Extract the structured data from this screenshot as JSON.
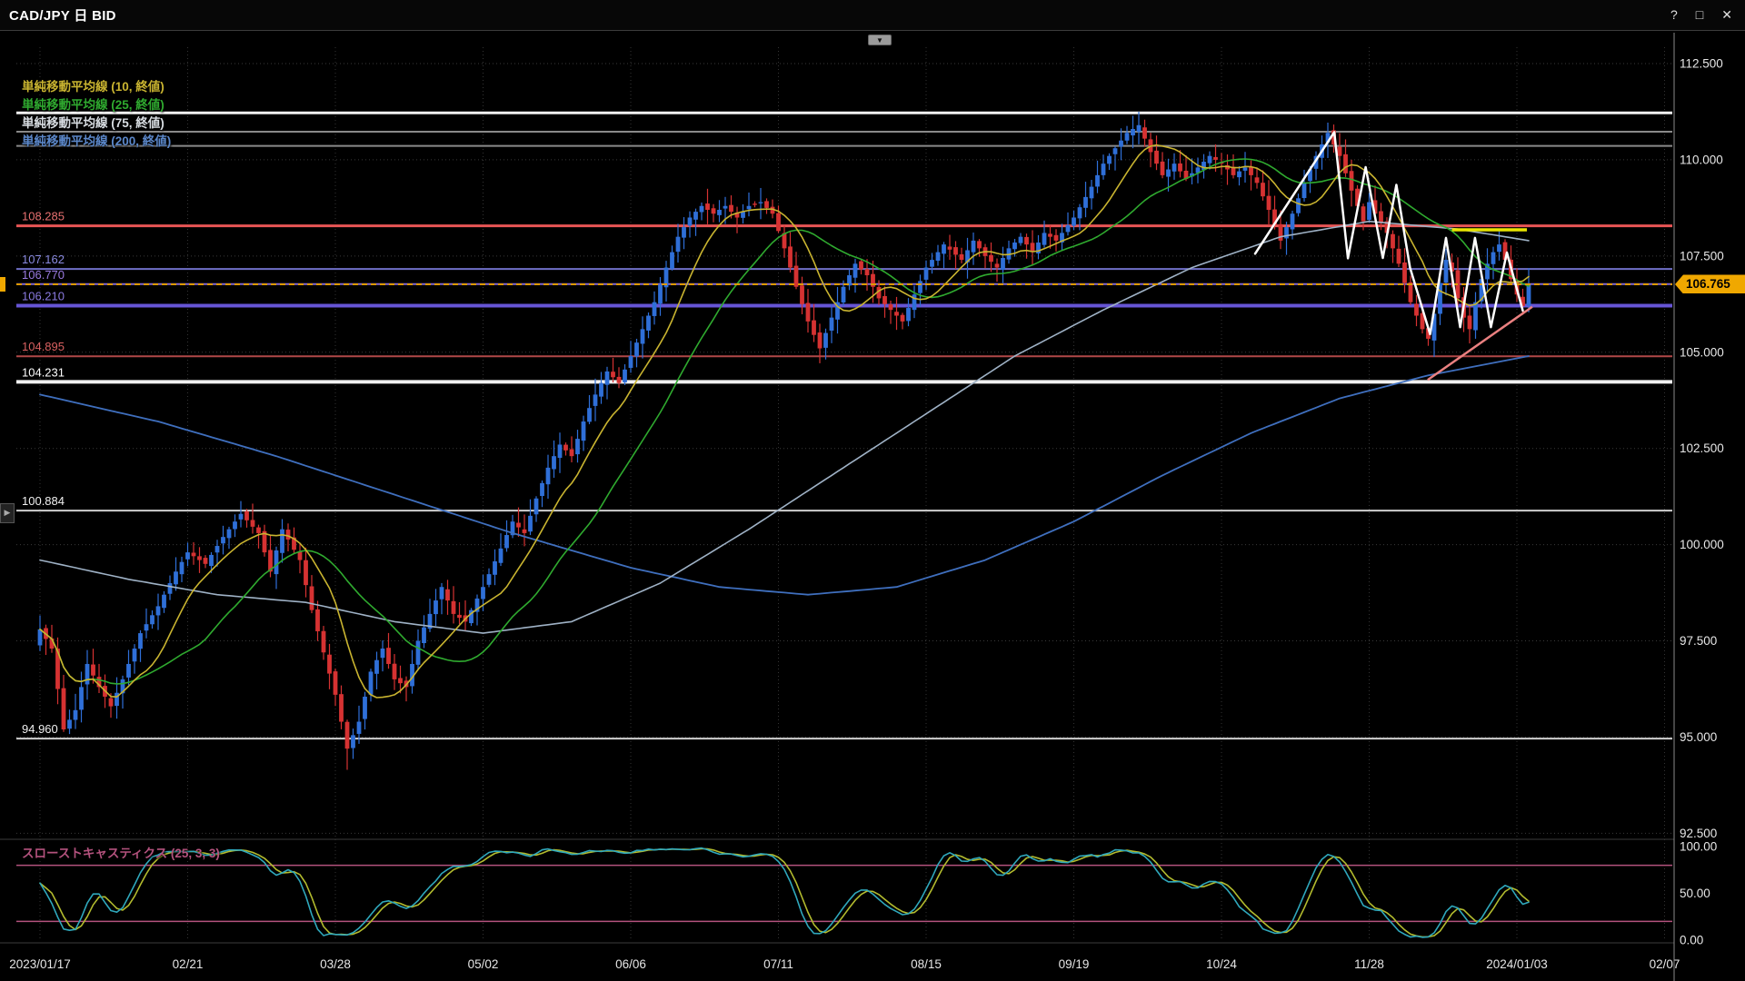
{
  "window": {
    "title": "CAD/JPY 日 BID",
    "controls": {
      "help": "?",
      "maximize": "□",
      "close": "✕"
    },
    "top_dropdown": "▼",
    "left_scroll_arrow": "▶"
  },
  "legend": {
    "items": [
      {
        "label": "単純移動平均線 (10, 終値)",
        "color": "#c9b430"
      },
      {
        "label": "単純移動平均線 (25, 終値)",
        "color": "#2faa2f"
      },
      {
        "label": "単純移動平均線 (75, 終値)",
        "color": "#d8dde2"
      },
      {
        "label": "単純移動平均線 (200, 終値)",
        "color": "#5b87c9"
      }
    ]
  },
  "stoch": {
    "label": "スローストキャスティクス (25, 3, 3)",
    "axis": [
      "100.00",
      "50.00",
      "0.00"
    ],
    "axis_values": [
      100,
      50,
      0
    ],
    "overbought": 80,
    "oversold": 20,
    "colors": {
      "k": "#2fa8bc",
      "d": "#b2bb2e",
      "bands": "#b3527d"
    }
  },
  "price_axis": {
    "ticks": [
      "112.500",
      "110.000",
      "107.500",
      "105.000",
      "102.500",
      "100.000",
      "97.500",
      "95.000",
      "92.500"
    ],
    "tick_values": [
      112.5,
      110.0,
      107.5,
      105.0,
      102.5,
      100.0,
      97.5,
      95.0,
      92.5
    ],
    "current_value": 106.765,
    "current_label": "106.765"
  },
  "time_axis": {
    "labels": [
      "2023/01/17",
      "02/21",
      "03/28",
      "05/02",
      "06/06",
      "07/11",
      "08/15",
      "09/19",
      "10/24",
      "11/28",
      "2024/01/03",
      "02/07"
    ],
    "bars_per_tick": 25
  },
  "hlines": [
    {
      "price": 111.22,
      "label": "",
      "color": "#f2f2f2",
      "width": 3
    },
    {
      "price": 110.73,
      "label": "",
      "color": "#8a8a8a",
      "width": 2
    },
    {
      "price": 110.36,
      "label": "",
      "color": "#8a8a8a",
      "width": 2
    },
    {
      "price": 108.285,
      "label": "108.285",
      "color": "#e85555",
      "width": 3,
      "label_color": "#e87070"
    },
    {
      "price": 107.162,
      "label": "107.162",
      "color": "#7070c8",
      "width": 2,
      "label_color": "#8a8ae0"
    },
    {
      "price": 106.77,
      "label": "106.770",
      "color": "#8468d0",
      "width": 2,
      "label_color": "#9a7ae0"
    },
    {
      "price": 106.21,
      "label": "106.210",
      "color": "#6655d5",
      "width": 4,
      "label_color": "#8a7ae0"
    },
    {
      "price": 104.895,
      "label": "104.895",
      "color": "#b04848",
      "width": 2,
      "label_color": "#d86060"
    },
    {
      "price": 104.231,
      "label": "104.231",
      "color": "#f0f0f0",
      "width": 4,
      "label_color": "#ffffff"
    },
    {
      "price": 100.884,
      "label": "100.884",
      "color": "#cfcfcf",
      "width": 2,
      "label_color": "#f0f0f0"
    },
    {
      "price": 94.96,
      "label": "94.960",
      "color": "#cfcfcf",
      "width": 2,
      "label_color": "#f0f0f0"
    }
  ],
  "chart_data": {
    "type": "candlestick",
    "symbol": "CAD/JPY",
    "timeframe": "daily (日)",
    "price_type": "BID",
    "current_bid": 106.765,
    "x_range": [
      "2023/01/17",
      "2024/02/07"
    ],
    "y_range": [
      92.5,
      112.5
    ],
    "bars_drawn": 253,
    "close_anchors": [
      [
        0,
        97.8
      ],
      [
        2,
        97.3
      ],
      [
        4,
        95.2
      ],
      [
        6,
        95.7
      ],
      [
        8,
        96.9
      ],
      [
        10,
        96.3
      ],
      [
        12,
        95.8
      ],
      [
        14,
        96.5
      ],
      [
        17,
        97.7
      ],
      [
        20,
        98.4
      ],
      [
        23,
        99.3
      ],
      [
        25,
        99.8
      ],
      [
        28,
        99.5
      ],
      [
        31,
        100.2
      ],
      [
        34,
        100.8
      ],
      [
        37,
        100.3
      ],
      [
        39,
        99.3
      ],
      [
        41,
        100.4
      ],
      [
        44,
        99.6
      ],
      [
        46,
        98.3
      ],
      [
        48,
        97.2
      ],
      [
        50,
        96.1
      ],
      [
        52,
        94.7
      ],
      [
        54,
        95.4
      ],
      [
        56,
        96.7
      ],
      [
        58,
        97.3
      ],
      [
        60,
        96.5
      ],
      [
        62,
        96.3
      ],
      [
        64,
        97.5
      ],
      [
        66,
        98.2
      ],
      [
        68,
        98.9
      ],
      [
        70,
        98.2
      ],
      [
        72,
        98.0
      ],
      [
        75,
        98.9
      ],
      [
        78,
        99.9
      ],
      [
        80,
        100.6
      ],
      [
        82,
        100.3
      ],
      [
        84,
        101.2
      ],
      [
        86,
        102.0
      ],
      [
        88,
        102.6
      ],
      [
        90,
        102.3
      ],
      [
        92,
        103.2
      ],
      [
        94,
        103.9
      ],
      [
        96,
        104.5
      ],
      [
        98,
        104.2
      ],
      [
        100,
        104.9
      ],
      [
        102,
        105.6
      ],
      [
        104,
        106.3
      ],
      [
        106,
        107.2
      ],
      [
        108,
        108.0
      ],
      [
        110,
        108.5
      ],
      [
        112,
        108.8
      ],
      [
        114,
        108.6
      ],
      [
        116,
        108.8
      ],
      [
        118,
        108.5
      ],
      [
        120,
        108.8
      ],
      [
        122,
        108.9
      ],
      [
        124,
        108.6
      ],
      [
        126,
        107.7
      ],
      [
        128,
        106.7
      ],
      [
        130,
        105.8
      ],
      [
        132,
        105.1
      ],
      [
        134,
        105.9
      ],
      [
        136,
        106.7
      ],
      [
        138,
        107.3
      ],
      [
        140,
        107.0
      ],
      [
        142,
        106.4
      ],
      [
        144,
        106.1
      ],
      [
        146,
        105.8
      ],
      [
        148,
        106.5
      ],
      [
        150,
        107.2
      ],
      [
        153,
        107.8
      ],
      [
        156,
        107.4
      ],
      [
        158,
        107.9
      ],
      [
        160,
        107.5
      ],
      [
        162,
        107.2
      ],
      [
        164,
        107.7
      ],
      [
        166,
        108.0
      ],
      [
        168,
        107.6
      ],
      [
        170,
        108.1
      ],
      [
        172,
        107.9
      ],
      [
        175,
        108.5
      ],
      [
        178,
        109.3
      ],
      [
        180,
        109.9
      ],
      [
        182,
        110.3
      ],
      [
        184,
        110.7
      ],
      [
        186,
        110.9
      ],
      [
        188,
        110.2
      ],
      [
        190,
        109.6
      ],
      [
        192,
        109.9
      ],
      [
        194,
        109.5
      ],
      [
        196,
        109.8
      ],
      [
        198,
        110.1
      ],
      [
        200,
        109.9
      ],
      [
        202,
        109.6
      ],
      [
        204,
        109.8
      ],
      [
        206,
        109.4
      ],
      [
        208,
        108.7
      ],
      [
        210,
        107.9
      ],
      [
        212,
        108.6
      ],
      [
        214,
        109.4
      ],
      [
        216,
        110.1
      ],
      [
        218,
        110.7
      ],
      [
        220,
        110.1
      ],
      [
        222,
        109.2
      ],
      [
        224,
        108.4
      ],
      [
        225,
        108.9
      ],
      [
        226,
        108.6
      ],
      [
        228,
        108.1
      ],
      [
        230,
        107.3
      ],
      [
        232,
        106.3
      ],
      [
        234,
        105.6
      ],
      [
        235,
        105.35
      ],
      [
        236,
        106.0
      ],
      [
        237,
        106.8
      ],
      [
        238,
        107.4
      ],
      [
        239,
        107.1
      ],
      [
        240,
        106.4
      ],
      [
        241,
        105.9
      ],
      [
        242,
        105.6
      ],
      [
        243,
        106.3
      ],
      [
        244,
        106.9
      ],
      [
        245,
        107.3
      ],
      [
        246,
        107.6
      ],
      [
        247,
        107.8
      ],
      [
        248,
        107.4
      ],
      [
        249,
        106.9
      ],
      [
        250,
        106.5
      ],
      [
        251,
        106.2
      ],
      [
        252,
        106.765
      ]
    ],
    "ma75_anchors": [
      [
        0,
        99.6
      ],
      [
        15,
        99.1
      ],
      [
        30,
        98.7
      ],
      [
        45,
        98.5
      ],
      [
        60,
        98.0
      ],
      [
        75,
        97.7
      ],
      [
        90,
        98.0
      ],
      [
        105,
        99.0
      ],
      [
        120,
        100.4
      ],
      [
        135,
        101.9
      ],
      [
        150,
        103.4
      ],
      [
        165,
        104.9
      ],
      [
        180,
        106.1
      ],
      [
        195,
        107.2
      ],
      [
        210,
        108.0
      ],
      [
        225,
        108.4
      ],
      [
        240,
        108.2
      ],
      [
        252,
        107.9
      ]
    ],
    "ma200_anchors": [
      [
        0,
        103.9
      ],
      [
        20,
        103.2
      ],
      [
        40,
        102.3
      ],
      [
        60,
        101.3
      ],
      [
        80,
        100.3
      ],
      [
        100,
        99.4
      ],
      [
        115,
        98.9
      ],
      [
        130,
        98.7
      ],
      [
        145,
        98.9
      ],
      [
        160,
        99.6
      ],
      [
        175,
        100.6
      ],
      [
        190,
        101.8
      ],
      [
        205,
        102.9
      ],
      [
        220,
        103.8
      ],
      [
        235,
        104.4
      ],
      [
        252,
        104.9
      ]
    ],
    "indicators": [
      "SMA(10, close)",
      "SMA(25, close)",
      "SMA(75, close)",
      "SMA(200, close)",
      "Slow Stochastics (25,3,3)"
    ]
  },
  "annotations": {
    "zigzag": {
      "color": "#ffffff",
      "width": 2.5,
      "points": [
        [
          205.7,
          107.56
        ],
        [
          219.1,
          110.72
        ],
        [
          221.4,
          107.44
        ],
        [
          224.4,
          109.81
        ],
        [
          227.3,
          107.45
        ],
        [
          229.6,
          109.35
        ],
        [
          231.9,
          107.2
        ],
        [
          235.3,
          105.47
        ],
        [
          238.0,
          107.97
        ],
        [
          240.4,
          105.65
        ],
        [
          242.9,
          107.97
        ],
        [
          245.6,
          105.65
        ],
        [
          248.3,
          107.59
        ],
        [
          251.0,
          106.08
        ]
      ]
    },
    "yellow_line": {
      "color": "#e8e400",
      "width": 3.5,
      "from": [
        239.0,
        108.18
      ],
      "to": [
        251.7,
        108.18
      ]
    },
    "pink_line": {
      "color": "#ea8080",
      "width": 2.5,
      "from": [
        234.9,
        104.28
      ],
      "to": [
        252.6,
        106.18
      ]
    }
  },
  "colors": {
    "bull": "#2f6fd8",
    "bear": "#d63232",
    "background": "#000000",
    "grid": "#3a3a3a",
    "axis_text": "#e6e6e6",
    "current_line": "#dd9900",
    "current_tag_bg": "#f0a800",
    "ma10": "#c9b430",
    "ma25": "#2faa2f",
    "ma75": "#9fb2c6",
    "ma200": "#3f6fbe"
  }
}
